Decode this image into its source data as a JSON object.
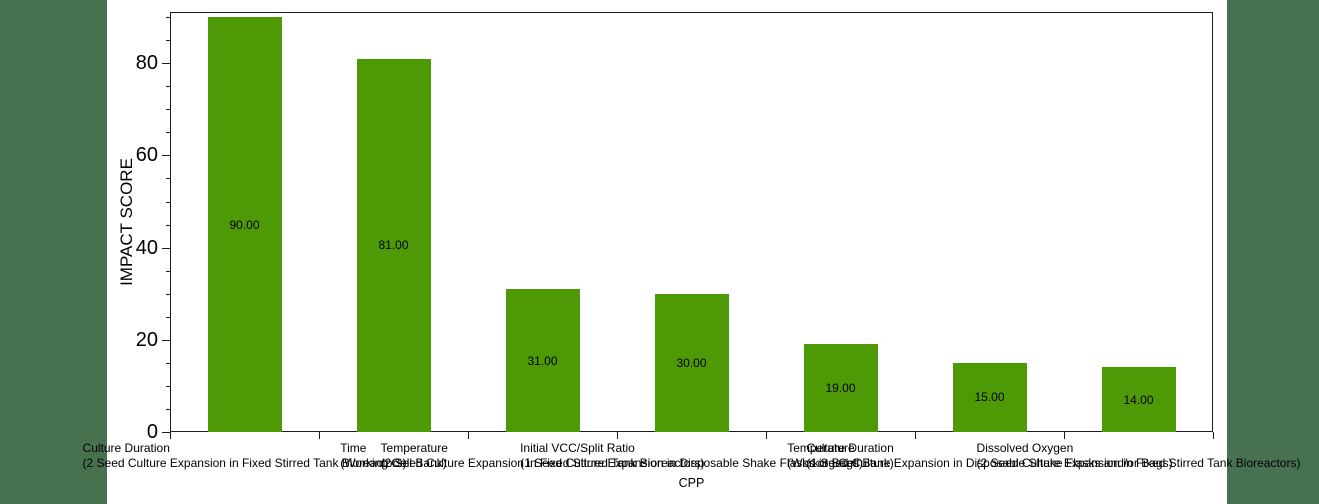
{
  "page": {
    "background_color": "#487150",
    "canvas_color": "#ffffff",
    "frame_color": "#1c1c1c",
    "text_color": "#000000"
  },
  "chart_data": {
    "type": "bar",
    "title": "",
    "ylabel": "IMPACT SCORE",
    "xlabel": "CPP",
    "ylim": [
      0,
      91
    ],
    "grid": false,
    "legend": null,
    "bar_color": "#4e9a06",
    "yticks_major": [
      0,
      20,
      40,
      60,
      80
    ],
    "ytick_minor_step": 5,
    "categories": [
      {
        "cpp": "Culture Duration",
        "process_step": "(2 Seed Culture Expansion in Fixed Stirred Tank Bioreactors)",
        "value": 90,
        "value_label": "90.00"
      },
      {
        "cpp": "Time",
        "process_step": "(Working Cell Bank)",
        "value": 81,
        "value_label": "81.00"
      },
      {
        "cpp": "Temperature",
        "process_step": "(2 Seed Culture Expansion in Fixed Stirred Tank Bioreactors)",
        "value": 31,
        "value_label": "31.00"
      },
      {
        "cpp": "Initial VCC/Split Ratio",
        "process_step": "(1 Seed Culture Expansion in Disposable Shake Flasks or Bags)",
        "value": 30,
        "value_label": "30.00"
      },
      {
        "cpp": "Temperature",
        "process_step": "(Working Cell Bank)",
        "value": 19,
        "value_label": "19.00"
      },
      {
        "cpp": "Culture Duration",
        "process_step": "(1 Seed Culture Expansion in Disposable Shake Flasks and/or Bags)",
        "value": 15,
        "value_label": "15.00"
      },
      {
        "cpp": "Dissolved Oxygen",
        "process_step": "(2 Seed Culture Expansion in Fixed Stirred Tank Bioreactors)",
        "value": 14,
        "value_label": "14.00"
      }
    ]
  }
}
